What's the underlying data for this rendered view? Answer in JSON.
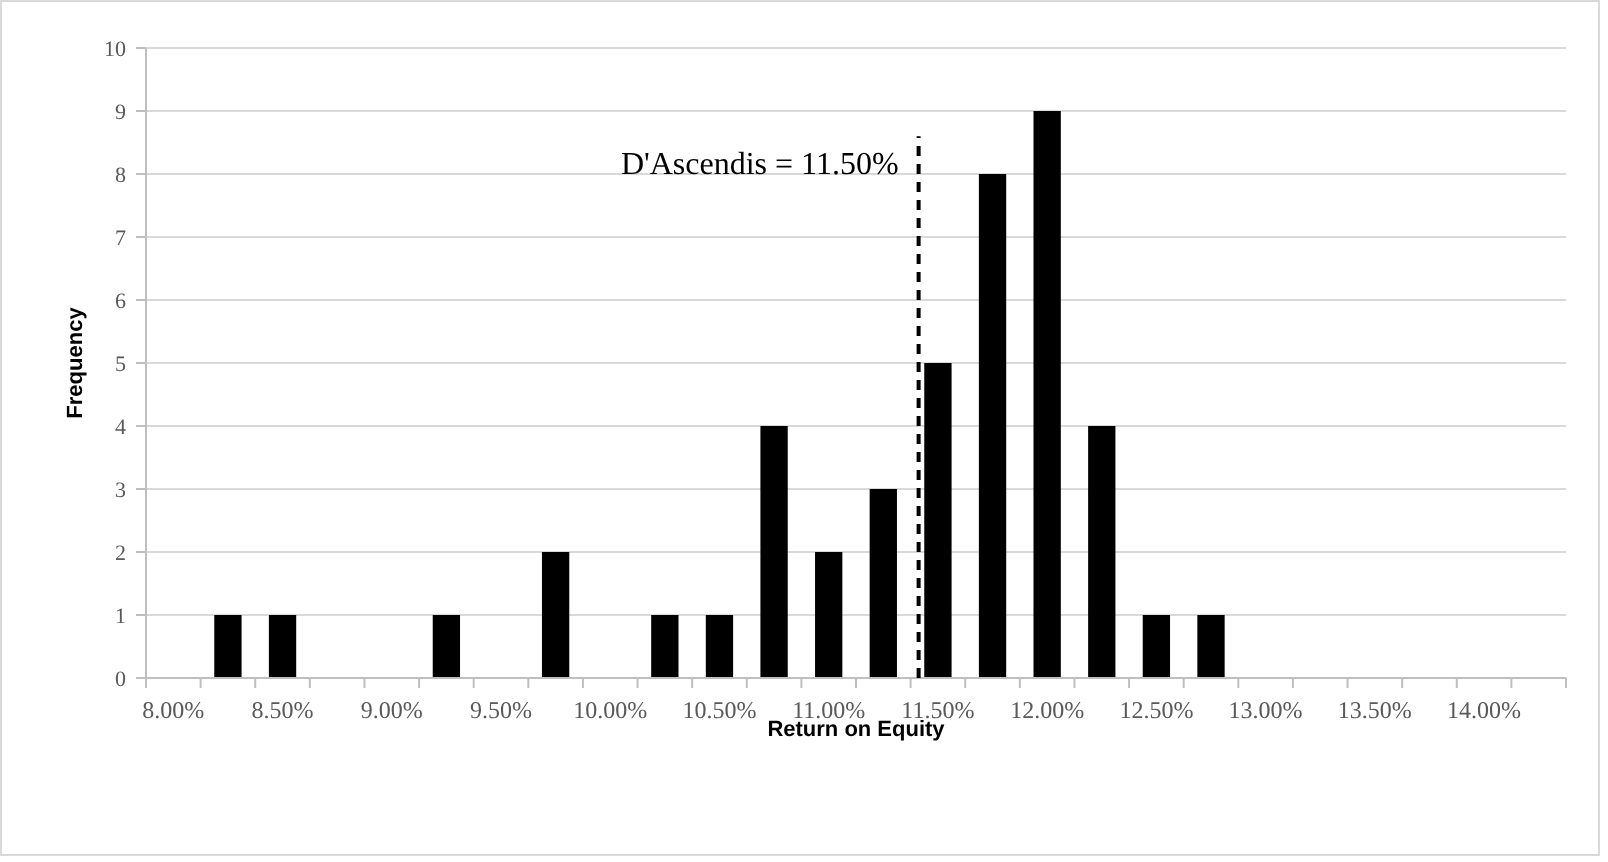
{
  "chart_data": {
    "type": "bar",
    "xlabel": "Return on Equity",
    "ylabel": "Frequency",
    "categories": [
      "8.00%",
      null,
      "8.50%",
      null,
      "9.00%",
      null,
      "9.50%",
      null,
      "10.00%",
      null,
      "10.50%",
      null,
      "11.00%",
      null,
      "11.50%",
      null,
      "12.00%",
      null,
      "12.50%",
      null,
      "13.00%",
      null,
      "13.50%",
      null,
      "14.00%",
      null
    ],
    "values": [
      0,
      1,
      1,
      0,
      0,
      1,
      0,
      2,
      0,
      1,
      1,
      4,
      2,
      3,
      5,
      8,
      9,
      4,
      1,
      1,
      0,
      0,
      0,
      0,
      0,
      0
    ],
    "color": "#000000",
    "ylim": [
      0,
      10
    ],
    "yticks": [
      0,
      1,
      2,
      3,
      4,
      5,
      6,
      7,
      8,
      9,
      10
    ],
    "grid": "y",
    "ref_lines": [
      {
        "axis": "x",
        "value": "11.50%",
        "label": "D'Ascendis = 11.50%",
        "color": "#000000",
        "line_style": "dashed"
      }
    ]
  }
}
